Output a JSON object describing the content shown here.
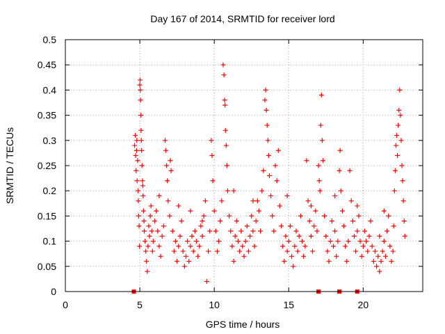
{
  "chart_data": {
    "type": "scatter",
    "title": "Day 167 of 2014, SRMTID for receiver lord",
    "xlabel": "GPS time / hours",
    "ylabel": "SRMTID / TECUs",
    "xlim": [
      0,
      24
    ],
    "ylim": [
      0,
      0.5
    ],
    "grid": true,
    "marker": "plus",
    "color": "#ff0000",
    "x_ticks": [
      {
        "value": 0,
        "label": "0"
      },
      {
        "value": 5,
        "label": "5"
      },
      {
        "value": 10,
        "label": "10"
      },
      {
        "value": 15,
        "label": "15"
      },
      {
        "value": 20,
        "label": "20"
      }
    ],
    "y_ticks": [
      {
        "value": 0,
        "label": "0"
      },
      {
        "value": 0.05,
        "label": "0.05"
      },
      {
        "value": 0.1,
        "label": "0.1"
      },
      {
        "value": 0.15,
        "label": "0.15"
      },
      {
        "value": 0.2,
        "label": "0.2"
      },
      {
        "value": 0.25,
        "label": "0.25"
      },
      {
        "value": 0.3,
        "label": "0.3"
      },
      {
        "value": 0.35,
        "label": "0.35"
      },
      {
        "value": 0.4,
        "label": "0.4"
      },
      {
        "value": 0.45,
        "label": "0.45"
      },
      {
        "value": 0.5,
        "label": "0.5"
      }
    ],
    "series": [
      {
        "points": [
          [
            4.65,
            0.29
          ],
          [
            4.7,
            0.31
          ],
          [
            4.72,
            0.27
          ],
          [
            4.75,
            0.24
          ],
          [
            4.78,
            0.28
          ],
          [
            4.8,
            0.3
          ],
          [
            4.82,
            0.22
          ],
          [
            4.85,
            0.26
          ],
          [
            4.88,
            0.2
          ],
          [
            4.9,
            0.18
          ],
          [
            4.92,
            0.15
          ],
          [
            4.95,
            0.13
          ],
          [
            4.98,
            0.09
          ],
          [
            5.0,
            0.41
          ],
          [
            5.02,
            0.42
          ],
          [
            5.03,
            0.4
          ],
          [
            5.05,
            0.38
          ],
          [
            5.07,
            0.35
          ],
          [
            5.08,
            0.32
          ],
          [
            5.1,
            0.3
          ],
          [
            5.12,
            0.28
          ],
          [
            5.15,
            0.25
          ],
          [
            5.18,
            0.22
          ],
          [
            5.2,
            0.21
          ],
          [
            5.22,
            0.19
          ],
          [
            5.25,
            0.16
          ],
          [
            5.28,
            0.14
          ],
          [
            5.3,
            0.12
          ],
          [
            5.35,
            0.1
          ],
          [
            5.4,
            0.08
          ],
          [
            5.45,
            0.06
          ],
          [
            5.5,
            0.04
          ],
          [
            5.55,
            0.09
          ],
          [
            5.6,
            0.13
          ],
          [
            5.65,
            0.11
          ],
          [
            5.7,
            0.15
          ],
          [
            5.75,
            0.17
          ],
          [
            5.8,
            0.12
          ],
          [
            5.85,
            0.08
          ],
          [
            5.9,
            0.1
          ],
          [
            6.0,
            0.14
          ],
          [
            6.1,
            0.16
          ],
          [
            6.2,
            0.12
          ],
          [
            6.3,
            0.09
          ],
          [
            6.4,
            0.07
          ],
          [
            6.5,
            0.11
          ],
          [
            6.6,
            0.13
          ],
          [
            6.7,
            0.3
          ],
          [
            6.75,
            0.28
          ],
          [
            6.8,
            0.25
          ],
          [
            6.85,
            0.22
          ],
          [
            6.9,
            0.18
          ],
          [
            7.0,
            0.15
          ],
          [
            7.05,
            0.26
          ],
          [
            7.1,
            0.24
          ],
          [
            7.2,
            0.12
          ],
          [
            7.3,
            0.08
          ],
          [
            7.4,
            0.1
          ],
          [
            7.5,
            0.06
          ],
          [
            7.6,
            0.09
          ],
          [
            7.7,
            0.11
          ],
          [
            7.8,
            0.14
          ],
          [
            7.9,
            0.08
          ],
          [
            8.0,
            0.05
          ],
          [
            8.1,
            0.07
          ],
          [
            8.2,
            0.1
          ],
          [
            8.3,
            0.06
          ],
          [
            8.4,
            0.09
          ],
          [
            8.5,
            0.11
          ],
          [
            8.6,
            0.08
          ],
          [
            8.7,
            0.12
          ],
          [
            8.8,
            0.1
          ],
          [
            8.9,
            0.07
          ],
          [
            9.0,
            0.09
          ],
          [
            9.1,
            0.13
          ],
          [
            9.2,
            0.11
          ],
          [
            9.3,
            0.15
          ],
          [
            9.4,
            0.18
          ],
          [
            9.5,
            0.02
          ],
          [
            9.6,
            0.08
          ],
          [
            9.7,
            0.12
          ],
          [
            9.8,
            0.3
          ],
          [
            9.85,
            0.27
          ],
          [
            9.9,
            0.22
          ],
          [
            10.0,
            0.16
          ],
          [
            10.1,
            0.12
          ],
          [
            10.2,
            0.08
          ],
          [
            10.3,
            0.1
          ],
          [
            10.4,
            0.14
          ],
          [
            10.5,
            0.18
          ],
          [
            10.6,
            0.45
          ],
          [
            10.65,
            0.43
          ],
          [
            10.7,
            0.38
          ],
          [
            10.72,
            0.37
          ],
          [
            10.75,
            0.32
          ],
          [
            10.8,
            0.29
          ],
          [
            10.85,
            0.25
          ],
          [
            10.9,
            0.2
          ],
          [
            11.0,
            0.15
          ],
          [
            11.1,
            0.12
          ],
          [
            11.2,
            0.09
          ],
          [
            11.3,
            0.06
          ],
          [
            11.4,
            0.11
          ],
          [
            11.5,
            0.14
          ],
          [
            11.6,
            0.1
          ],
          [
            11.7,
            0.08
          ],
          [
            11.8,
            0.12
          ],
          [
            11.9,
            0.09
          ],
          [
            12.0,
            0.07
          ],
          [
            12.1,
            0.1
          ],
          [
            12.2,
            0.13
          ],
          [
            12.3,
            0.08
          ],
          [
            12.4,
            0.11
          ],
          [
            12.5,
            0.15
          ],
          [
            12.6,
            0.12
          ],
          [
            12.7,
            0.09
          ],
          [
            12.8,
            0.14
          ],
          [
            12.9,
            0.18
          ],
          [
            13.0,
            0.16
          ],
          [
            13.1,
            0.12
          ],
          [
            13.2,
            0.2
          ],
          [
            13.3,
            0.24
          ],
          [
            13.4,
            0.38
          ],
          [
            13.45,
            0.4
          ],
          [
            13.5,
            0.36
          ],
          [
            13.55,
            0.33
          ],
          [
            13.6,
            0.3
          ],
          [
            13.65,
            0.27
          ],
          [
            13.7,
            0.23
          ],
          [
            13.8,
            0.19
          ],
          [
            13.9,
            0.15
          ],
          [
            14.0,
            0.12
          ],
          [
            14.1,
            0.25
          ],
          [
            14.2,
            0.22
          ],
          [
            14.3,
            0.28
          ],
          [
            14.4,
            0.17
          ],
          [
            14.5,
            0.13
          ],
          [
            14.6,
            0.09
          ],
          [
            14.7,
            0.06
          ],
          [
            14.8,
            0.11
          ],
          [
            14.9,
            0.08
          ],
          [
            15.0,
            0.1
          ],
          [
            15.1,
            0.13
          ],
          [
            15.2,
            0.07
          ],
          [
            15.3,
            0.05
          ],
          [
            15.4,
            0.09
          ],
          [
            15.5,
            0.12
          ],
          [
            15.6,
            0.08
          ],
          [
            15.7,
            0.11
          ],
          [
            15.8,
            0.15
          ],
          [
            15.9,
            0.1
          ],
          [
            16.0,
            0.07
          ],
          [
            16.1,
            0.09
          ],
          [
            16.2,
            0.26
          ],
          [
            16.3,
            0.18
          ],
          [
            16.4,
            0.14
          ],
          [
            16.5,
            0.11
          ],
          [
            16.6,
            0.08
          ],
          [
            16.7,
            0.13
          ],
          [
            16.8,
            0.16
          ],
          [
            16.9,
            0.12
          ],
          [
            17.0,
            0.25
          ],
          [
            17.05,
            0.22
          ],
          [
            17.1,
            0.2
          ],
          [
            17.15,
            0.33
          ],
          [
            17.2,
            0.39
          ],
          [
            17.25,
            0.3
          ],
          [
            17.3,
            0.26
          ],
          [
            17.4,
            0.15
          ],
          [
            17.5,
            0.11
          ],
          [
            17.6,
            0.08
          ],
          [
            17.7,
            0.06
          ],
          [
            17.8,
            0.1
          ],
          [
            17.9,
            0.14
          ],
          [
            18.0,
            0.09
          ],
          [
            18.1,
            0.12
          ],
          [
            18.2,
            0.07
          ],
          [
            18.3,
            0.1
          ],
          [
            18.4,
            0.24
          ],
          [
            18.45,
            0.28
          ],
          [
            18.5,
            0.2
          ],
          [
            18.6,
            0.16
          ],
          [
            18.7,
            0.13
          ],
          [
            18.8,
            0.09
          ],
          [
            18.9,
            0.06
          ],
          [
            19.0,
            0.1
          ],
          [
            19.1,
            0.24
          ],
          [
            19.2,
            0.18
          ],
          [
            19.3,
            0.14
          ],
          [
            19.4,
            0.11
          ],
          [
            19.5,
            0.08
          ],
          [
            19.6,
            0.12
          ],
          [
            19.7,
            0.15
          ],
          [
            19.8,
            0.1
          ],
          [
            19.9,
            0.07
          ],
          [
            20.0,
            0.09
          ],
          [
            20.1,
            0.12
          ],
          [
            20.2,
            0.1
          ],
          [
            20.3,
            0.08
          ],
          [
            20.4,
            0.11
          ],
          [
            20.5,
            0.14
          ],
          [
            20.6,
            0.09
          ],
          [
            20.7,
            0.06
          ],
          [
            20.8,
            0.08
          ],
          [
            20.9,
            0.05
          ],
          [
            21.0,
            0.07
          ],
          [
            21.1,
            0.04
          ],
          [
            21.2,
            0.06
          ],
          [
            21.3,
            0.08
          ],
          [
            21.4,
            0.1
          ],
          [
            21.5,
            0.07
          ],
          [
            21.6,
            0.12
          ],
          [
            21.7,
            0.15
          ],
          [
            21.8,
            0.09
          ],
          [
            21.9,
            0.06
          ],
          [
            22.0,
            0.08
          ],
          [
            22.05,
            0.13
          ],
          [
            22.1,
            0.2
          ],
          [
            22.15,
            0.24
          ],
          [
            22.2,
            0.29
          ],
          [
            22.25,
            0.31
          ],
          [
            22.3,
            0.27
          ],
          [
            22.35,
            0.33
          ],
          [
            22.4,
            0.36
          ],
          [
            22.45,
            0.4
          ],
          [
            22.5,
            0.35
          ],
          [
            22.55,
            0.3
          ],
          [
            22.6,
            0.25
          ],
          [
            22.65,
            0.22
          ],
          [
            22.7,
            0.18
          ],
          [
            22.75,
            0.14
          ],
          [
            22.8,
            0.11
          ],
          [
            6.3,
            0.19
          ],
          [
            7.6,
            0.17
          ],
          [
            8.4,
            0.16
          ],
          [
            9.2,
            0.14
          ],
          [
            11.3,
            0.2
          ],
          [
            12.6,
            0.18
          ],
          [
            14.9,
            0.19
          ],
          [
            16.5,
            0.17
          ],
          [
            18.1,
            0.19
          ],
          [
            19.6,
            0.17
          ],
          [
            21.1,
            0.11
          ],
          [
            21.4,
            0.16
          ]
        ]
      }
    ],
    "extra_points": [
      {
        "x": 4.6,
        "y": 0
      },
      {
        "x": 17.0,
        "y": 0
      },
      {
        "x": 18.4,
        "y": 0
      },
      {
        "x": 19.6,
        "y": 0
      }
    ]
  }
}
